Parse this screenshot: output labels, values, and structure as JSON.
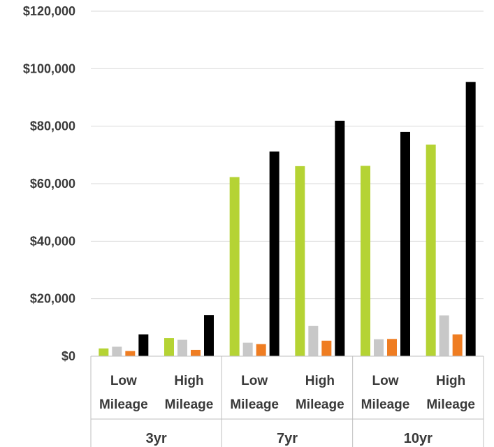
{
  "chart_data": {
    "type": "bar",
    "title": "",
    "xlabel": "",
    "ylabel": "",
    "ylim": [
      0,
      120000
    ],
    "y_ticks": [
      {
        "value": 0,
        "label": "$0"
      },
      {
        "value": 20000,
        "label": "$20,000"
      },
      {
        "value": 40000,
        "label": "$40,000"
      },
      {
        "value": 60000,
        "label": "$60,000"
      },
      {
        "value": 80000,
        "label": "$80,000"
      },
      {
        "value": 100000,
        "label": "$100,000"
      },
      {
        "value": 120000,
        "label": "$120,000"
      }
    ],
    "grid": true,
    "legend": "none",
    "groups": [
      {
        "label": "3yr",
        "categories": [
          [
            "Low",
            "Mileage"
          ],
          [
            "High",
            "Mileage"
          ]
        ]
      },
      {
        "label": "7yr",
        "categories": [
          [
            "Low",
            "Mileage"
          ],
          [
            "High",
            "Mileage"
          ]
        ]
      },
      {
        "label": "10yr",
        "categories": [
          [
            "Low",
            "Mileage"
          ],
          [
            "High",
            "Mileage"
          ]
        ]
      }
    ],
    "categories": [
      "3yr Low Mileage",
      "3yr High Mileage",
      "7yr Low Mileage",
      "7yr High Mileage",
      "10yr Low Mileage",
      "10yr High Mileage"
    ],
    "series": [
      {
        "color": "#b5d334",
        "values": [
          2700,
          6300,
          62300,
          66100,
          66200,
          73600
        ]
      },
      {
        "color": "#c8c8c8",
        "values": [
          3300,
          5700,
          4700,
          10500,
          5900,
          14200
        ]
      },
      {
        "color": "#ef7d22",
        "values": [
          1800,
          2200,
          4200,
          5400,
          6000,
          7600
        ]
      },
      {
        "color": "#000000",
        "values": [
          7600,
          14300,
          71200,
          81900,
          78000,
          95400
        ]
      }
    ]
  },
  "colors": {
    "grid": "#d9d9d9",
    "axis": "#bfbfbf",
    "text": "#3a3a3a"
  }
}
